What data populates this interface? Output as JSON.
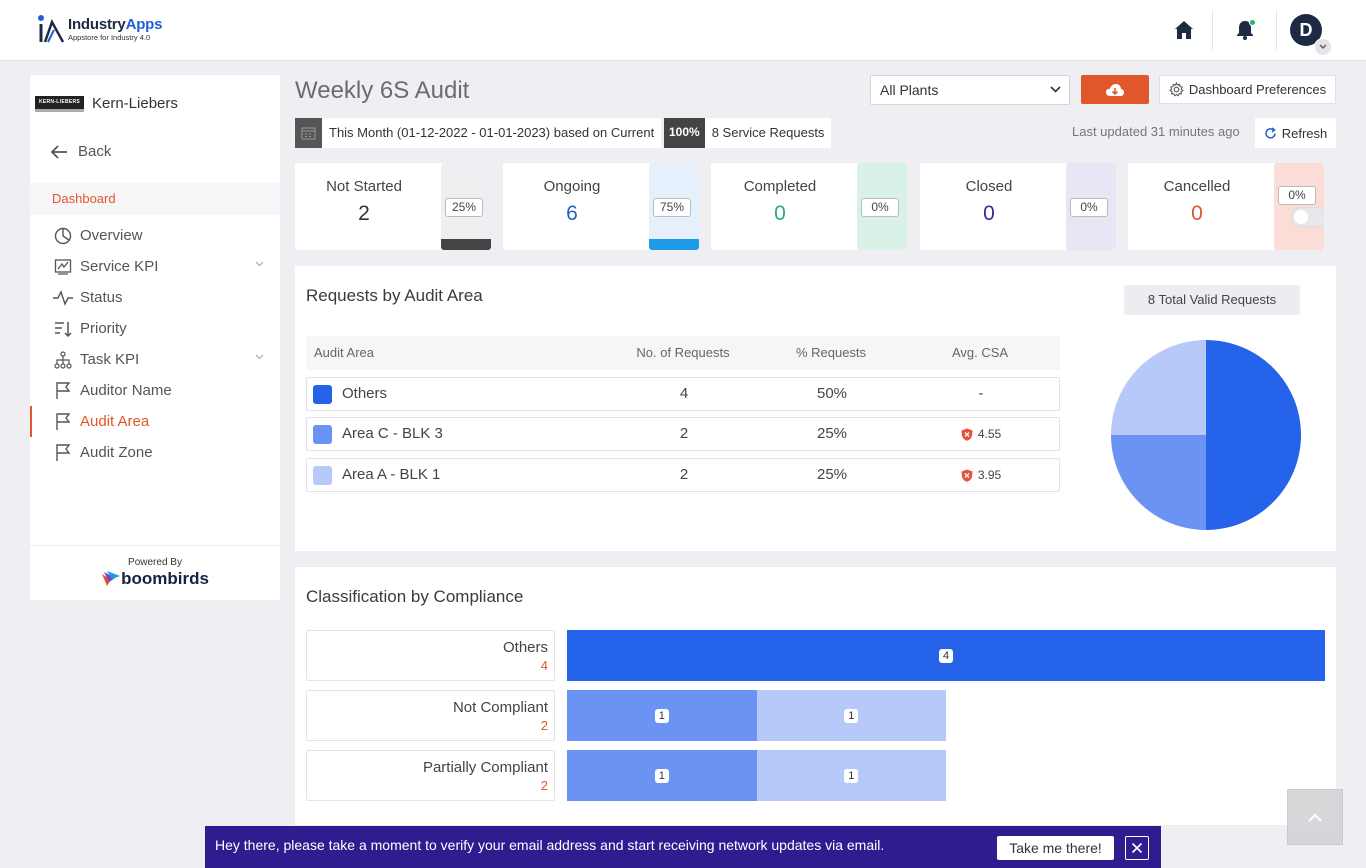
{
  "header": {
    "logo_name": "IndustryApps",
    "logo_name_a": "Industry",
    "logo_name_b": "Apps",
    "logo_tagline": "Appstore for Industry 4.0",
    "avatar_initial": "D",
    "icons": [
      "home-icon",
      "bell-icon",
      "chevron-down-icon"
    ]
  },
  "sidebar": {
    "org_logo_text": "KERN-LIEBERS",
    "org_name": "Kern-Liebers",
    "back_label": "Back",
    "section_label": "Dashboard",
    "items": [
      {
        "label": "Overview",
        "icon": "pie-chart-icon",
        "expandable": false
      },
      {
        "label": "Service KPI",
        "icon": "kpi-icon",
        "expandable": true
      },
      {
        "label": "Status",
        "icon": "pulse-icon",
        "expandable": false
      },
      {
        "label": "Priority",
        "icon": "sort-icon",
        "expandable": false
      },
      {
        "label": "Task KPI",
        "icon": "hierarchy-icon",
        "expandable": true
      },
      {
        "label": "Auditor Name",
        "icon": "flag-icon",
        "expandable": false
      },
      {
        "label": "Audit Area",
        "icon": "flag-icon",
        "expandable": false,
        "active": true
      },
      {
        "label": "Audit Zone",
        "icon": "flag-icon",
        "expandable": false
      }
    ],
    "powered_by": "Powered By",
    "powered_brand": "boombirds"
  },
  "toolbar": {
    "title": "Weekly 6S Audit",
    "plant_select": "All Plants",
    "download_icon": "cloud-download-icon",
    "prefs_label": "Dashboard Preferences",
    "date_range": "This Month (01-12-2022 - 01-01-2023) based on Current",
    "request_pct": "100%",
    "request_count": "8 Service Requests",
    "last_updated": "Last updated 31 minutes ago",
    "refresh_label": "Refresh"
  },
  "status_cards": [
    {
      "label": "Not Started",
      "value": "2",
      "pct": "25%",
      "fraction": 0.25,
      "color": "#444444",
      "track": "#efeff2",
      "value_color": "#333333"
    },
    {
      "label": "Ongoing",
      "value": "6",
      "pct": "75%",
      "fraction": 0.75,
      "color": "#1d9be6",
      "track": "#e6effc",
      "value_color": "#2a5fc9"
    },
    {
      "label": "Completed",
      "value": "0",
      "pct": "0%",
      "fraction": 0,
      "color": "#2eaa76",
      "track": "#d8f2e7",
      "value_color": "#2eaa76"
    },
    {
      "label": "Closed",
      "value": "0",
      "pct": "0%",
      "fraction": 0,
      "color": "#3b2d9a",
      "track": "#e8e6f5",
      "value_color": "#3b2d9a"
    },
    {
      "label": "Cancelled",
      "value": "0",
      "pct": "0%",
      "fraction": 0,
      "color": "#e0572b",
      "track": "#fbdcd7",
      "value_color": "#e0572b"
    }
  ],
  "audit_area": {
    "title": "Requests by Audit Area",
    "total_badge": "8 Total Valid Requests",
    "columns": [
      "Audit Area",
      "No. of Requests",
      "% Requests",
      "Avg. CSA"
    ],
    "rows": [
      {
        "name": "Others",
        "count": "4",
        "pct": "50%",
        "csa": "-",
        "csa_icon": false,
        "color": "#2563eb"
      },
      {
        "name": "Area C - BLK 3",
        "count": "2",
        "pct": "25%",
        "csa": "4.55",
        "csa_icon": true,
        "color": "#6b93f3"
      },
      {
        "name": "Area A - BLK 1",
        "count": "2",
        "pct": "25%",
        "csa": "3.95",
        "csa_icon": true,
        "color": "#b6c9f8"
      }
    ]
  },
  "chart_data": {
    "type": "pie",
    "labels": [
      "Others",
      "Area C - BLK 3",
      "Area A - BLK 1"
    ],
    "values": [
      4,
      2,
      2
    ],
    "colors": [
      "#2563eb",
      "#6b93f3",
      "#b6c9f8"
    ]
  },
  "compliance": {
    "title": "Classification by Compliance",
    "rows": [
      {
        "name": "Others",
        "count": "4",
        "segments": [
          {
            "value": 4,
            "label": "4",
            "color": "#2563eb"
          }
        ]
      },
      {
        "name": "Not Compliant",
        "count": "2",
        "segments": [
          {
            "value": 1,
            "label": "1",
            "color": "#6b93f3"
          },
          {
            "value": 1,
            "label": "1",
            "color": "#b6c9f8"
          }
        ]
      },
      {
        "name": "Partially Compliant",
        "count": "2",
        "segments": [
          {
            "value": 1,
            "label": "1",
            "color": "#6b93f3"
          },
          {
            "value": 1,
            "label": "1",
            "color": "#b6c9f8"
          }
        ]
      }
    ]
  },
  "banner": {
    "text": "Hey there, please take a moment to verify your email address and start receiving network updates via email.",
    "button": "Take me there!"
  }
}
